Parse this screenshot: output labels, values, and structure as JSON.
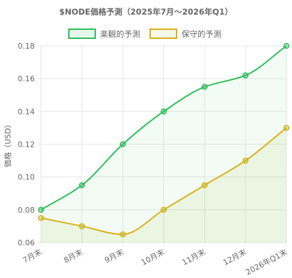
{
  "chart_data": {
    "type": "line",
    "title": "$NODE価格予測（2025年7月～2026年Q1）",
    "ylabel": "価格（USD）",
    "xlabel": "",
    "categories": [
      "7月末",
      "8月末",
      "9月末",
      "10月末",
      "11月末",
      "12月末",
      "2026年Q1末"
    ],
    "ylim": [
      0.06,
      0.18
    ],
    "yticks": [
      "0.06",
      "0.08",
      "0.10",
      "0.12",
      "0.14",
      "0.16",
      "0.18"
    ],
    "grid": true,
    "legend_position": "top-center",
    "series": [
      {
        "name": "楽観的予測",
        "color": "#2ebd59",
        "fill": "rgba(46,189,89,0.06)",
        "values": [
          0.08,
          0.095,
          0.12,
          0.14,
          0.155,
          0.162,
          0.18
        ]
      },
      {
        "name": "保守的予測",
        "color": "#d9b017",
        "fill": "rgba(160,200,60,0.10)",
        "values": [
          0.075,
          0.07,
          0.065,
          0.08,
          0.095,
          0.11,
          0.13
        ]
      }
    ]
  }
}
